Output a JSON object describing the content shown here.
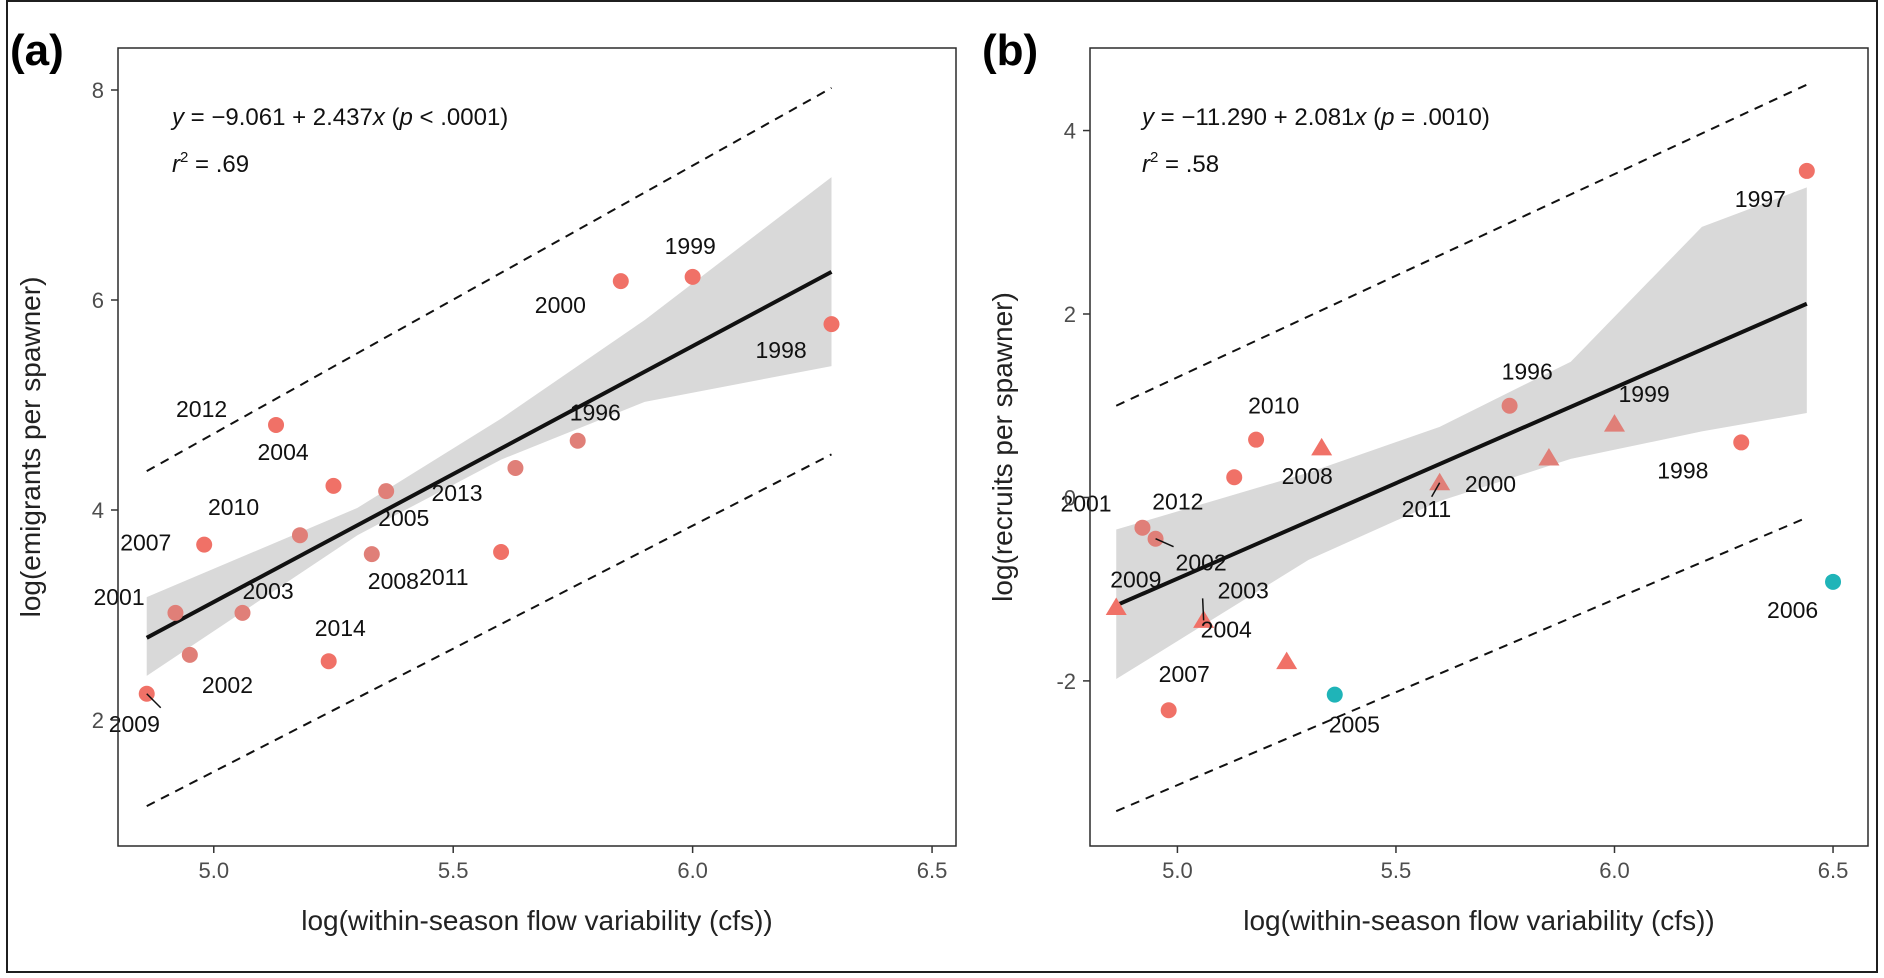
{
  "chart_data": [
    {
      "type": "scatter",
      "panel_label": "(a)",
      "xlabel": "log(within-season flow variability (cfs))",
      "ylabel": "log(emigrants per spawner)",
      "xlim": [
        4.8,
        6.55
      ],
      "ylim": [
        0.8,
        8.4
      ],
      "xticks": [
        5.0,
        5.5,
        6.0,
        6.5
      ],
      "xtick_labels": [
        "5.0",
        "5.5",
        "6.0",
        "6.5"
      ],
      "yticks": [
        2,
        4,
        6,
        8
      ],
      "ytick_labels": [
        "2",
        "4",
        "6",
        "8"
      ],
      "grid": false,
      "equation": {
        "prefix_var": "y",
        "body": " = −9.061 + 2.437",
        "x_var": "x",
        "p_open": " (",
        "p_var": "p",
        "p_value": " < .0001)",
        "r2_var": "r",
        "r2_sup": "2",
        "r2_value": " = .69"
      },
      "fit": {
        "intercept": -9.061,
        "slope": 2.437,
        "x_range": [
          4.86,
          6.29
        ]
      },
      "confidence_band": {
        "x": [
          4.86,
          5.3,
          5.6,
          5.9,
          6.29
        ],
        "lower": [
          2.42,
          3.76,
          4.48,
          5.03,
          5.37
        ],
        "upper": [
          3.17,
          4.02,
          4.87,
          5.81,
          7.17
        ]
      },
      "prediction_interval": {
        "lower": {
          "x": [
            4.86,
            6.29
          ],
          "y": [
            1.18,
            4.53
          ]
        },
        "upper": {
          "x": [
            4.86,
            6.29
          ],
          "y": [
            4.37,
            8.02
          ]
        }
      },
      "points": [
        {
          "year": "2009",
          "x": 4.86,
          "y": 2.25,
          "shape": "circle",
          "color": "#f07167"
        },
        {
          "year": "2001",
          "x": 4.92,
          "y": 3.02,
          "shape": "circle",
          "color": "#e07f78"
        },
        {
          "year": "2002",
          "x": 4.95,
          "y": 2.62,
          "shape": "circle",
          "color": "#e07f78"
        },
        {
          "year": "2007",
          "x": 4.98,
          "y": 3.67,
          "shape": "circle",
          "color": "#f07167"
        },
        {
          "year": "2003",
          "x": 5.06,
          "y": 3.02,
          "shape": "circle",
          "color": "#e07f78"
        },
        {
          "year": "2012",
          "x": 5.13,
          "y": 4.81,
          "shape": "circle",
          "color": "#f07167"
        },
        {
          "year": "2010",
          "x": 5.18,
          "y": 3.76,
          "shape": "circle",
          "color": "#e07f78"
        },
        {
          "year": "2014",
          "x": 5.24,
          "y": 2.56,
          "shape": "circle",
          "color": "#f07167"
        },
        {
          "year": "2004",
          "x": 5.25,
          "y": 4.23,
          "shape": "circle",
          "color": "#f07167"
        },
        {
          "year": "2008",
          "x": 5.33,
          "y": 3.58,
          "shape": "circle",
          "color": "#e07f78"
        },
        {
          "year": "2005",
          "x": 5.36,
          "y": 4.18,
          "shape": "circle",
          "color": "#e07f78"
        },
        {
          "year": "2011",
          "x": 5.6,
          "y": 3.6,
          "shape": "circle",
          "color": "#f07167"
        },
        {
          "year": "2013",
          "x": 5.63,
          "y": 4.4,
          "shape": "circle",
          "color": "#e07f78"
        },
        {
          "year": "1996",
          "x": 5.76,
          "y": 4.66,
          "shape": "circle",
          "color": "#e07f78"
        },
        {
          "year": "2000",
          "x": 5.85,
          "y": 6.18,
          "shape": "circle",
          "color": "#f07167"
        },
        {
          "year": "1999",
          "x": 6.0,
          "y": 6.22,
          "shape": "circle",
          "color": "#f07167"
        },
        {
          "year": "1998",
          "x": 6.29,
          "y": 5.77,
          "shape": "circle",
          "color": "#f07167"
        }
      ]
    },
    {
      "type": "scatter",
      "panel_label": "(b)",
      "xlabel": "log(within-season flow variability (cfs))",
      "ylabel": "log(recruits per spawner)",
      "xlim": [
        4.8,
        6.58
      ],
      "ylim": [
        -3.8,
        4.9
      ],
      "xticks": [
        5.0,
        5.5,
        6.0,
        6.5
      ],
      "xtick_labels": [
        "5.0",
        "5.5",
        "6.0",
        "6.5"
      ],
      "yticks": [
        -2,
        0,
        2,
        4
      ],
      "ytick_labels": [
        "-2",
        "0",
        "2",
        "4"
      ],
      "grid": false,
      "equation": {
        "prefix_var": "y",
        "body": " = −11.290 + 2.081",
        "x_var": "x",
        "p_open": " (",
        "p_var": "p",
        "p_value": " = .0010)",
        "r2_var": "r",
        "r2_sup": "2",
        "r2_value": " = .58"
      },
      "fit": {
        "intercept": -11.29,
        "slope": 2.081,
        "x_range": [
          4.86,
          6.44
        ]
      },
      "confidence_band": {
        "x": [
          4.86,
          5.3,
          5.6,
          5.9,
          6.2,
          6.44
        ],
        "lower": [
          -1.98,
          -0.68,
          -0.04,
          0.42,
          0.72,
          0.92
        ],
        "upper": [
          -0.35,
          0.27,
          0.77,
          1.48,
          2.95,
          3.38
        ]
      },
      "prediction_interval": {
        "lower": {
          "x": [
            4.86,
            6.44
          ],
          "y": [
            -3.42,
            -0.22
          ]
        },
        "upper": {
          "x": [
            4.86,
            6.44
          ],
          "y": [
            1.0,
            4.5
          ]
        }
      },
      "points": [
        {
          "year": "2009",
          "x": 4.86,
          "y": -1.2,
          "shape": "triangle",
          "color": "#f07167"
        },
        {
          "year": "2001",
          "x": 4.92,
          "y": -0.33,
          "shape": "circle",
          "color": "#e07f78"
        },
        {
          "year": "2002",
          "x": 4.95,
          "y": -0.45,
          "shape": "circle",
          "color": "#e07f78"
        },
        {
          "year": "2007",
          "x": 4.98,
          "y": -2.32,
          "shape": "circle",
          "color": "#f07167"
        },
        {
          "year": "2003",
          "x": 5.06,
          "y": -1.34,
          "shape": "triangle",
          "color": "#f07167"
        },
        {
          "year": "2012",
          "x": 5.13,
          "y": 0.22,
          "shape": "circle",
          "color": "#f07167"
        },
        {
          "year": "2010",
          "x": 5.18,
          "y": 0.63,
          "shape": "circle",
          "color": "#f07167"
        },
        {
          "year": "2004",
          "x": 5.25,
          "y": -1.79,
          "shape": "triangle",
          "color": "#f07167"
        },
        {
          "year": "2008",
          "x": 5.33,
          "y": 0.54,
          "shape": "triangle",
          "color": "#f07167"
        },
        {
          "year": "2005",
          "x": 5.36,
          "y": -2.15,
          "shape": "circle",
          "color": "#1fb4b8"
        },
        {
          "year": "2011",
          "x": 5.6,
          "y": 0.16,
          "shape": "triangle",
          "color": "#e07f78"
        },
        {
          "year": "1996",
          "x": 5.76,
          "y": 1.0,
          "shape": "circle",
          "color": "#e07f78"
        },
        {
          "year": "2000",
          "x": 5.85,
          "y": 0.43,
          "shape": "triangle",
          "color": "#e07f78"
        },
        {
          "year": "1999",
          "x": 6.0,
          "y": 0.8,
          "shape": "triangle",
          "color": "#e07f78"
        },
        {
          "year": "1998",
          "x": 6.29,
          "y": 0.6,
          "shape": "circle",
          "color": "#f07167"
        },
        {
          "year": "1997",
          "x": 6.44,
          "y": 3.56,
          "shape": "circle",
          "color": "#f07167"
        },
        {
          "year": "2006",
          "x": 6.5,
          "y": -0.92,
          "shape": "circle",
          "color": "#1fb4b8"
        }
      ]
    }
  ],
  "colors": {
    "band": "#d9d9d9",
    "fit_line": "#111111",
    "dashed": "#111111",
    "panel_border": "#2b2b2b"
  }
}
